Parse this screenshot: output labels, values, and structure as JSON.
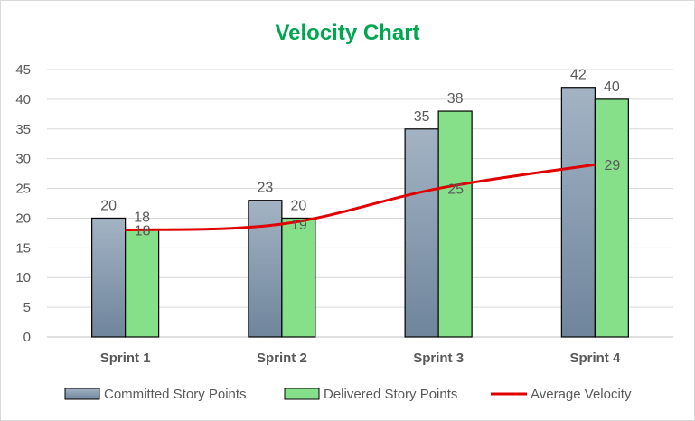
{
  "chart_data": {
    "type": "bar",
    "title": "Velocity Chart",
    "categories": [
      "Sprint 1",
      "Sprint 2",
      "Sprint 3",
      "Sprint 4"
    ],
    "series": [
      {
        "name": "Committed Story Points",
        "type": "bar",
        "values": [
          20,
          23,
          35,
          42
        ],
        "color": "#8497b0"
      },
      {
        "name": "Delivered Story Points",
        "type": "bar",
        "values": [
          18,
          20,
          38,
          40
        ],
        "color": "#86e08a"
      },
      {
        "name": "Average Velocity",
        "type": "line",
        "values": [
          18,
          19,
          25,
          29
        ],
        "color": "#e00000"
      }
    ],
    "ylim": [
      0,
      45
    ],
    "yticks": [
      0,
      5,
      10,
      15,
      20,
      25,
      30,
      35,
      40,
      45
    ],
    "grid": true,
    "legend_position": "bottom",
    "title_color": "#00a650"
  }
}
